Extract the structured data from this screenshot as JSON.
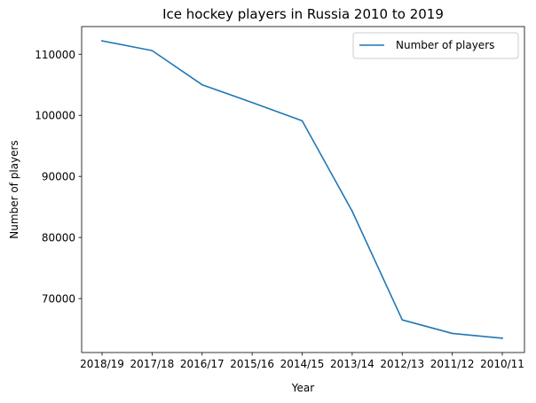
{
  "chart_data": {
    "type": "line",
    "title": "Ice hockey players in Russia 2010 to 2019",
    "xlabel": "Year",
    "ylabel": "Number of players",
    "categories": [
      "2018/19",
      "2017/18",
      "2016/17",
      "2015/16",
      "2014/15",
      "2013/14",
      "2012/13",
      "2011/12",
      "2010/11"
    ],
    "series": [
      {
        "name": "Number of players",
        "color": "#1f77b4",
        "values": [
          112200,
          110600,
          105000,
          102100,
          99100,
          84300,
          66500,
          64300,
          63500
        ]
      }
    ],
    "yticks": [
      70000,
      80000,
      90000,
      100000,
      110000
    ],
    "ylim": [
      61166,
      114534
    ],
    "grid": false,
    "legend_position": "upper right"
  }
}
